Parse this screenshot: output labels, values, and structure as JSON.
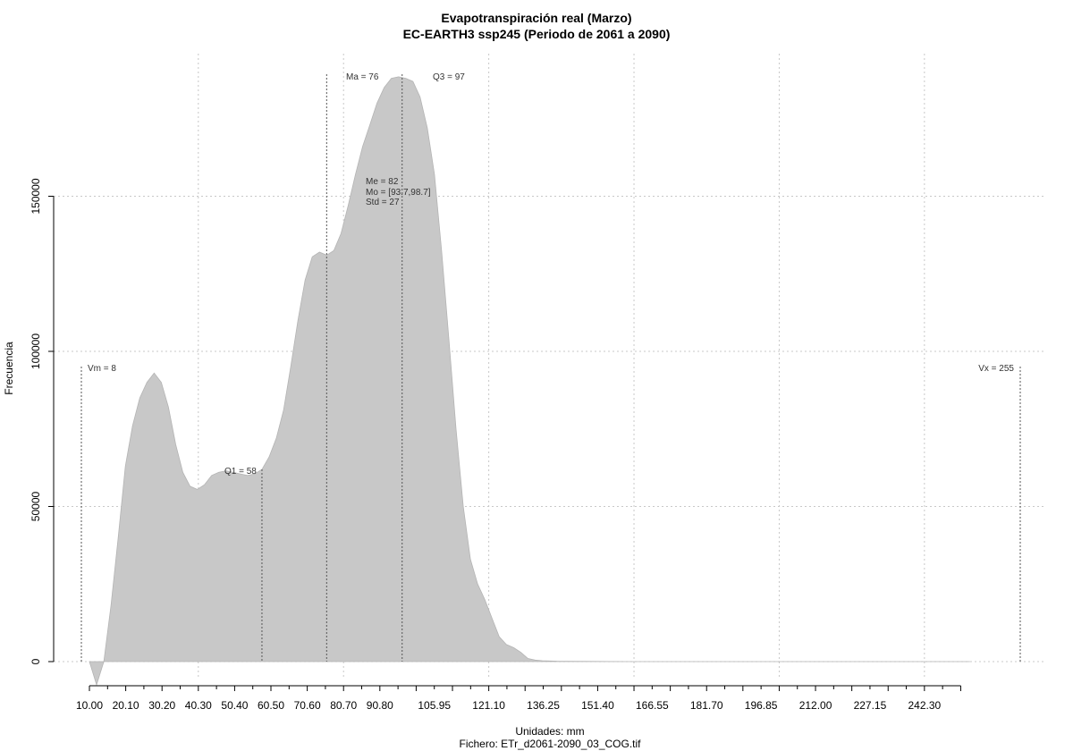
{
  "title_line1": "Evapotranspiración real (Marzo)",
  "title_line2": "EC-EARTH3 ssp245 (Periodo de 2061 a 2090)",
  "footer_units": "Unidades: mm",
  "footer_file": "Fichero: ETr_d2061-2090_03_COG.tif",
  "colors": {
    "fill": "#c8c8c8",
    "grid": "#c8c8c8",
    "stat_line": "#555555"
  },
  "chart_data": {
    "type": "area",
    "xlabel": "",
    "ylabel": "Frecuencia",
    "grid": true,
    "ylim": [
      -8000,
      190000
    ],
    "y_ticks": [
      0,
      50000,
      100000,
      150000
    ],
    "y_tick_labels": [
      "0",
      "50000",
      "100000",
      "150000"
    ],
    "x_ticks": [
      10.0,
      20.1,
      30.2,
      40.3,
      50.4,
      60.5,
      70.6,
      80.7,
      90.8,
      105.95,
      121.1,
      136.25,
      151.4,
      166.55,
      181.7,
      196.85,
      212.0,
      227.15,
      242.3
    ],
    "x_tick_labels": [
      "10.00",
      "20.10",
      "30.20",
      "40.30",
      "50.40",
      "60.50",
      "70.60",
      "80.70",
      "90.80",
      "105.95",
      "121.10",
      "136.25",
      "151.40",
      "166.55",
      "181.70",
      "196.85",
      "212.00",
      "227.15",
      "242.30"
    ],
    "series": [
      {
        "values": [
          [
            10.0,
            0
          ],
          [
            12.0,
            -7500
          ],
          [
            14.0,
            0
          ],
          [
            16.0,
            18000
          ],
          [
            18.0,
            40000
          ],
          [
            20.0,
            63000
          ],
          [
            22.0,
            76000
          ],
          [
            24.0,
            85000
          ],
          [
            26.0,
            90000
          ],
          [
            28.0,
            93000
          ],
          [
            30.0,
            90000
          ],
          [
            32.0,
            82000
          ],
          [
            34.0,
            70000
          ],
          [
            36.0,
            61000
          ],
          [
            38.0,
            56500
          ],
          [
            40.0,
            55500
          ],
          [
            42.0,
            57000
          ],
          [
            44.0,
            60000
          ],
          [
            46.0,
            61000
          ],
          [
            48.0,
            61500
          ],
          [
            50.0,
            61000
          ],
          [
            52.0,
            60500
          ],
          [
            54.0,
            60000
          ],
          [
            56.0,
            60500
          ],
          [
            58.0,
            62000
          ],
          [
            60.0,
            66000
          ],
          [
            62.0,
            72000
          ],
          [
            64.0,
            81000
          ],
          [
            66.0,
            95000
          ],
          [
            68.0,
            110000
          ],
          [
            70.0,
            123000
          ],
          [
            72.0,
            130500
          ],
          [
            74.0,
            132000
          ],
          [
            76.0,
            131000
          ],
          [
            78.0,
            132500
          ],
          [
            80.0,
            138000
          ],
          [
            82.0,
            147000
          ],
          [
            84.0,
            157000
          ],
          [
            86.0,
            166000
          ],
          [
            88.0,
            173000
          ],
          [
            90.0,
            180000
          ],
          [
            92.0,
            185000
          ],
          [
            94.0,
            188000
          ],
          [
            96.0,
            188500
          ],
          [
            98.0,
            188000
          ],
          [
            100.0,
            187000
          ],
          [
            102.0,
            182000
          ],
          [
            104.0,
            172000
          ],
          [
            106.0,
            157000
          ],
          [
            108.0,
            132000
          ],
          [
            110.0,
            104000
          ],
          [
            112.0,
            75000
          ],
          [
            114.0,
            50000
          ],
          [
            116.0,
            33000
          ],
          [
            118.0,
            25000
          ],
          [
            120.0,
            20000
          ],
          [
            122.0,
            14000
          ],
          [
            124.0,
            8000
          ],
          [
            126.0,
            5500
          ],
          [
            128.0,
            4500
          ],
          [
            130.0,
            3000
          ],
          [
            132.0,
            1000
          ],
          [
            134.0,
            500
          ],
          [
            136.0,
            300
          ],
          [
            140.0,
            150
          ],
          [
            150.0,
            50
          ],
          [
            160.0,
            0
          ],
          [
            200.0,
            0
          ],
          [
            255.0,
            0
          ]
        ]
      }
    ],
    "annotations": {
      "vm": {
        "label": "Vm = 8",
        "x": 8
      },
      "vx": {
        "label": "Vx = 255",
        "x": 255
      },
      "q1": {
        "label": "Q1 = 58",
        "x": 58
      },
      "ma": {
        "label": "Ma = 76",
        "x": 76
      },
      "q3": {
        "label": "Q3 = 97",
        "x": 97
      },
      "me": {
        "label": "Me = 82"
      },
      "mo": {
        "label": "Mo = [93.7,98.7]"
      },
      "std": {
        "label": "Std = 27"
      }
    }
  }
}
